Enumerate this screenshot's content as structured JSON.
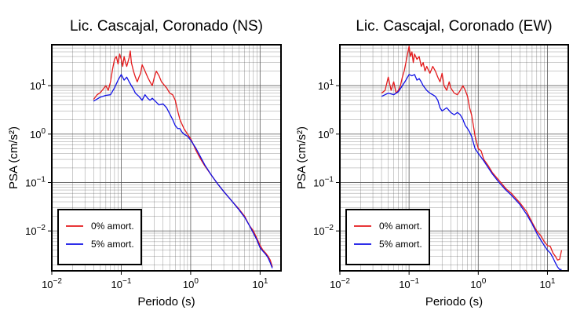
{
  "colors": {
    "undamped": "#e41a1c",
    "damped": "#1010e6",
    "grid": "#555555",
    "frame": "#000000"
  },
  "chart_data": [
    {
      "type": "line",
      "title": "Lic. Cascajal, Coronado (NS)",
      "xlabel": "Periodo (s)",
      "ylabel": "PSA (cm/s²)",
      "xscale": "log",
      "yscale": "log",
      "xlim": [
        0.01,
        20
      ],
      "ylim": [
        0.0015,
        70
      ],
      "xticks": [
        {
          "v": 0.01,
          "base": "10",
          "exp": "−2"
        },
        {
          "v": 0.1,
          "base": "10",
          "exp": "−1"
        },
        {
          "v": 1,
          "base": "10",
          "exp": "0"
        },
        {
          "v": 10,
          "base": "10",
          "exp": "1"
        }
      ],
      "yticks": [
        {
          "v": 0.01,
          "base": "10",
          "exp": "−2"
        },
        {
          "v": 0.1,
          "base": "10",
          "exp": "−1"
        },
        {
          "v": 1,
          "base": "10",
          "exp": "0"
        },
        {
          "v": 10,
          "base": "10",
          "exp": "1"
        }
      ],
      "grid": true,
      "legend_position": "bottom-left",
      "series": [
        {
          "name": "0% amort.",
          "color": "#e41a1c",
          "points": [
            [
              0.04,
              5.2
            ],
            [
              0.045,
              6.5
            ],
            [
              0.05,
              7.2
            ],
            [
              0.055,
              8.5
            ],
            [
              0.06,
              10
            ],
            [
              0.065,
              8
            ],
            [
              0.07,
              12
            ],
            [
              0.075,
              22
            ],
            [
              0.08,
              35
            ],
            [
              0.085,
              40
            ],
            [
              0.09,
              28
            ],
            [
              0.095,
              45
            ],
            [
              0.1,
              35
            ],
            [
              0.105,
              25
            ],
            [
              0.11,
              40
            ],
            [
              0.115,
              30
            ],
            [
              0.12,
              25
            ],
            [
              0.13,
              38
            ],
            [
              0.135,
              52
            ],
            [
              0.14,
              30
            ],
            [
              0.15,
              20
            ],
            [
              0.16,
              15
            ],
            [
              0.17,
              12
            ],
            [
              0.18,
              15
            ],
            [
              0.19,
              18
            ],
            [
              0.2,
              27
            ],
            [
              0.22,
              20
            ],
            [
              0.24,
              15
            ],
            [
              0.26,
              12
            ],
            [
              0.28,
              10
            ],
            [
              0.3,
              15
            ],
            [
              0.32,
              20
            ],
            [
              0.35,
              16
            ],
            [
              0.38,
              12
            ],
            [
              0.4,
              11
            ],
            [
              0.45,
              9
            ],
            [
              0.5,
              7
            ],
            [
              0.55,
              6.5
            ],
            [
              0.6,
              5
            ],
            [
              0.65,
              3
            ],
            [
              0.7,
              2
            ],
            [
              0.75,
              1.6
            ],
            [
              0.8,
              1.3
            ],
            [
              0.9,
              1.0
            ],
            [
              1.0,
              0.8
            ],
            [
              1.1,
              0.6
            ],
            [
              1.2,
              0.45
            ],
            [
              1.4,
              0.3
            ],
            [
              1.6,
              0.22
            ],
            [
              2.0,
              0.14
            ],
            [
              2.5,
              0.09
            ],
            [
              3.0,
              0.065
            ],
            [
              4.0,
              0.04
            ],
            [
              5.0,
              0.028
            ],
            [
              6.0,
              0.02
            ],
            [
              7.0,
              0.013
            ],
            [
              8.0,
              0.01
            ],
            [
              9.0,
              0.007
            ],
            [
              10,
              0.005
            ],
            [
              11,
              0.004
            ],
            [
              12,
              0.0035
            ],
            [
              13,
              0.003
            ],
            [
              14,
              0.0025
            ],
            [
              15,
              0.0018
            ]
          ]
        },
        {
          "name": "5% amort.",
          "color": "#1010e6",
          "points": [
            [
              0.04,
              4.8
            ],
            [
              0.05,
              5.8
            ],
            [
              0.06,
              6.3
            ],
            [
              0.07,
              6.5
            ],
            [
              0.08,
              9
            ],
            [
              0.09,
              13
            ],
            [
              0.1,
              17
            ],
            [
              0.11,
              13
            ],
            [
              0.12,
              15
            ],
            [
              0.13,
              12
            ],
            [
              0.14,
              10
            ],
            [
              0.15,
              8.5
            ],
            [
              0.16,
              7
            ],
            [
              0.18,
              6
            ],
            [
              0.2,
              5
            ],
            [
              0.22,
              6.5
            ],
            [
              0.24,
              5.5
            ],
            [
              0.26,
              5
            ],
            [
              0.28,
              5.5
            ],
            [
              0.3,
              5
            ],
            [
              0.35,
              4
            ],
            [
              0.4,
              4.2
            ],
            [
              0.45,
              3.5
            ],
            [
              0.5,
              2.6
            ],
            [
              0.55,
              2
            ],
            [
              0.6,
              1.5
            ],
            [
              0.65,
              1.3
            ],
            [
              0.7,
              1.3
            ],
            [
              0.75,
              1.1
            ],
            [
              0.8,
              1.0
            ],
            [
              0.9,
              0.9
            ],
            [
              1.0,
              0.75
            ],
            [
              1.2,
              0.5
            ],
            [
              1.4,
              0.33
            ],
            [
              1.6,
              0.23
            ],
            [
              2.0,
              0.14
            ],
            [
              2.5,
              0.09
            ],
            [
              3.0,
              0.065
            ],
            [
              4.0,
              0.04
            ],
            [
              5.0,
              0.027
            ],
            [
              6.0,
              0.019
            ],
            [
              7.0,
              0.013
            ],
            [
              8.0,
              0.009
            ],
            [
              9.0,
              0.0065
            ],
            [
              10,
              0.0045
            ],
            [
              11,
              0.0038
            ],
            [
              12,
              0.0033
            ],
            [
              13,
              0.0028
            ],
            [
              14,
              0.0022
            ],
            [
              15,
              0.0017
            ]
          ]
        }
      ]
    },
    {
      "type": "line",
      "title": "Lic. Cascajal, Coronado (EW)",
      "xlabel": "Periodo (s)",
      "ylabel": "PSA (cm/s²)",
      "xscale": "log",
      "yscale": "log",
      "xlim": [
        0.01,
        20
      ],
      "ylim": [
        0.0015,
        70
      ],
      "xticks": [
        {
          "v": 0.01,
          "base": "10",
          "exp": "−2"
        },
        {
          "v": 0.1,
          "base": "10",
          "exp": "−1"
        },
        {
          "v": 1,
          "base": "10",
          "exp": "0"
        },
        {
          "v": 10,
          "base": "10",
          "exp": "1"
        }
      ],
      "yticks": [
        {
          "v": 0.01,
          "base": "10",
          "exp": "−2"
        },
        {
          "v": 0.1,
          "base": "10",
          "exp": "−1"
        },
        {
          "v": 1,
          "base": "10",
          "exp": "0"
        },
        {
          "v": 10,
          "base": "10",
          "exp": "1"
        }
      ],
      "grid": true,
      "legend_position": "bottom-left",
      "series": [
        {
          "name": "0% amort.",
          "color": "#e41a1c",
          "points": [
            [
              0.04,
              7
            ],
            [
              0.045,
              8
            ],
            [
              0.05,
              15
            ],
            [
              0.055,
              8
            ],
            [
              0.06,
              12
            ],
            [
              0.065,
              7
            ],
            [
              0.07,
              8
            ],
            [
              0.075,
              10
            ],
            [
              0.08,
              15
            ],
            [
              0.085,
              20
            ],
            [
              0.09,
              30
            ],
            [
              0.095,
              45
            ],
            [
              0.1,
              65
            ],
            [
              0.105,
              40
            ],
            [
              0.11,
              50
            ],
            [
              0.115,
              30
            ],
            [
              0.12,
              45
            ],
            [
              0.13,
              35
            ],
            [
              0.14,
              40
            ],
            [
              0.15,
              25
            ],
            [
              0.16,
              30
            ],
            [
              0.17,
              20
            ],
            [
              0.18,
              25
            ],
            [
              0.2,
              18
            ],
            [
              0.22,
              25
            ],
            [
              0.24,
              20
            ],
            [
              0.26,
              15
            ],
            [
              0.28,
              12
            ],
            [
              0.3,
              18
            ],
            [
              0.32,
              10
            ],
            [
              0.35,
              8
            ],
            [
              0.38,
              12
            ],
            [
              0.4,
              9
            ],
            [
              0.45,
              7
            ],
            [
              0.5,
              6.5
            ],
            [
              0.55,
              8
            ],
            [
              0.6,
              10
            ],
            [
              0.65,
              8
            ],
            [
              0.7,
              6
            ],
            [
              0.75,
              3.5
            ],
            [
              0.8,
              2.5
            ],
            [
              0.85,
              1.5
            ],
            [
              0.9,
              0.9
            ],
            [
              1.0,
              0.5
            ],
            [
              1.1,
              0.45
            ],
            [
              1.2,
              0.3
            ],
            [
              1.4,
              0.22
            ],
            [
              1.6,
              0.16
            ],
            [
              2.0,
              0.11
            ],
            [
              2.5,
              0.075
            ],
            [
              3.0,
              0.06
            ],
            [
              4.0,
              0.038
            ],
            [
              5.0,
              0.025
            ],
            [
              6.0,
              0.015
            ],
            [
              7.0,
              0.01
            ],
            [
              8.0,
              0.008
            ],
            [
              9.0,
              0.006
            ],
            [
              10,
              0.005
            ],
            [
              11,
              0.0048
            ],
            [
              12,
              0.0035
            ],
            [
              13,
              0.003
            ],
            [
              14,
              0.0025
            ],
            [
              15,
              0.0026
            ],
            [
              16,
              0.004
            ]
          ]
        },
        {
          "name": "5% amort.",
          "color": "#1010e6",
          "points": [
            [
              0.04,
              6
            ],
            [
              0.05,
              7
            ],
            [
              0.06,
              6.5
            ],
            [
              0.07,
              7.5
            ],
            [
              0.08,
              10
            ],
            [
              0.09,
              13
            ],
            [
              0.1,
              17
            ],
            [
              0.11,
              16
            ],
            [
              0.12,
              17
            ],
            [
              0.13,
              13
            ],
            [
              0.14,
              14
            ],
            [
              0.15,
              12
            ],
            [
              0.16,
              10
            ],
            [
              0.18,
              8
            ],
            [
              0.2,
              7
            ],
            [
              0.22,
              6.5
            ],
            [
              0.24,
              6
            ],
            [
              0.26,
              5
            ],
            [
              0.28,
              3.5
            ],
            [
              0.3,
              3
            ],
            [
              0.35,
              3.5
            ],
            [
              0.4,
              2.8
            ],
            [
              0.45,
              2.5
            ],
            [
              0.5,
              2.8
            ],
            [
              0.55,
              2.5
            ],
            [
              0.6,
              2
            ],
            [
              0.65,
              1.5
            ],
            [
              0.7,
              1.3
            ],
            [
              0.75,
              1.1
            ],
            [
              0.8,
              0.9
            ],
            [
              0.9,
              0.5
            ],
            [
              1.0,
              0.4
            ],
            [
              1.2,
              0.28
            ],
            [
              1.4,
              0.2
            ],
            [
              1.6,
              0.15
            ],
            [
              2.0,
              0.1
            ],
            [
              2.5,
              0.07
            ],
            [
              3.0,
              0.055
            ],
            [
              4.0,
              0.035
            ],
            [
              5.0,
              0.022
            ],
            [
              6.0,
              0.014
            ],
            [
              7.0,
              0.009
            ],
            [
              8.0,
              0.0065
            ],
            [
              9.0,
              0.005
            ],
            [
              10,
              0.004
            ],
            [
              11,
              0.0035
            ],
            [
              12,
              0.0028
            ],
            [
              13,
              0.0022
            ],
            [
              14,
              0.0018
            ],
            [
              15,
              0.0016
            ],
            [
              16,
              0.0016
            ]
          ]
        }
      ]
    }
  ]
}
